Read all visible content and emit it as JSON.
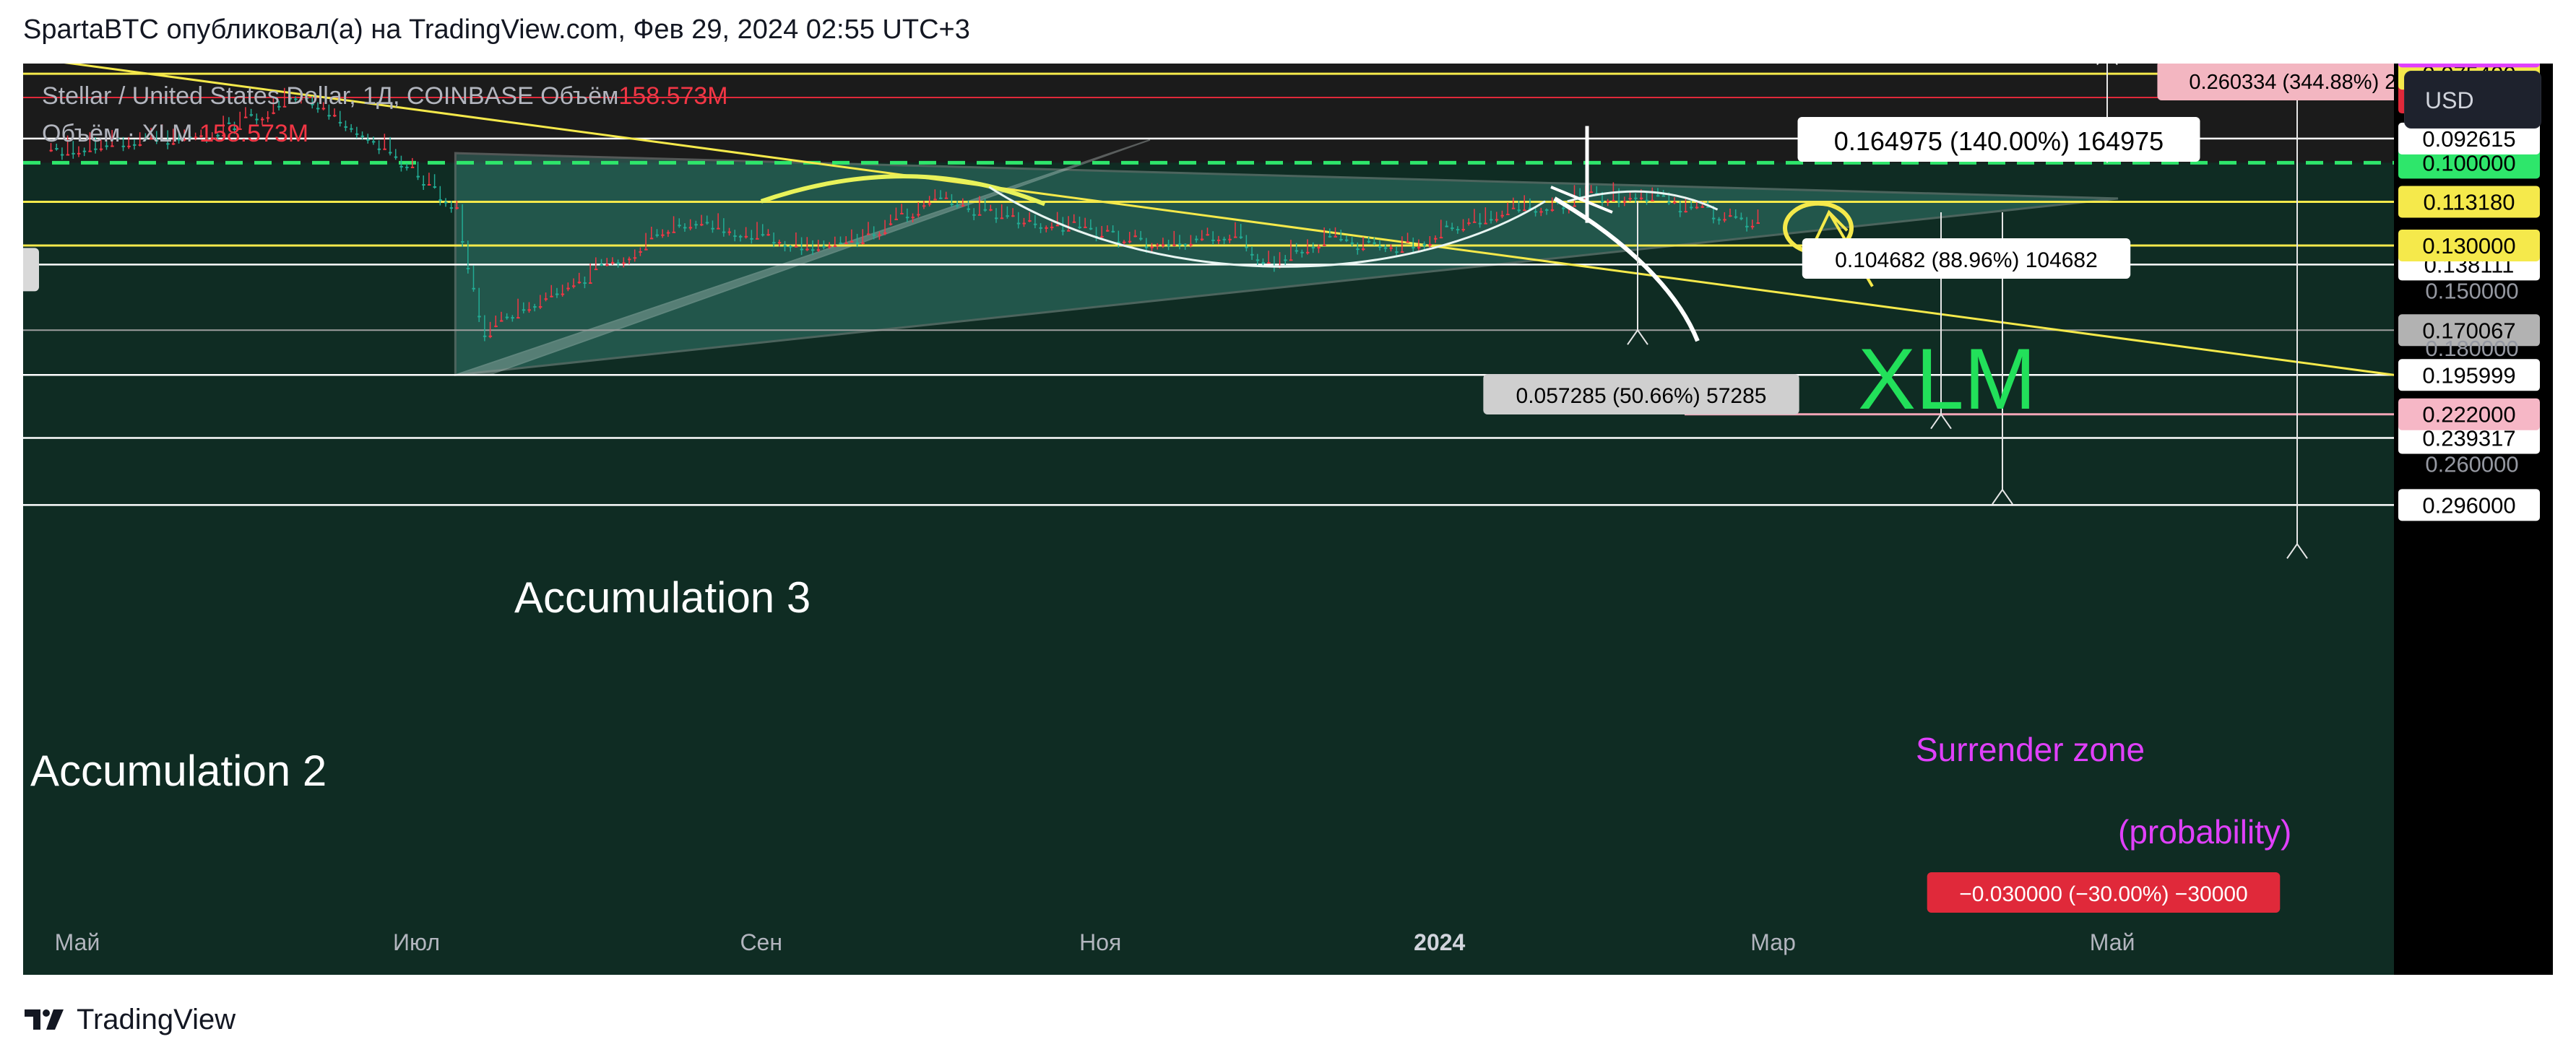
{
  "header": {
    "text": "SpartaBTC опубликовал(а) на TradingView.com, Фев 29, 2024 02:55 UTC+3"
  },
  "footer": {
    "brand": "TradingView"
  },
  "legend": {
    "line1_prefix": "Stellar / United States Dollar, 1Д, COINBASE  Объём",
    "line1_value": "158.573M",
    "line2_prefix": "Объём · XLM ",
    "line2_value": "158.573M"
  },
  "price_scale": {
    "currency_button": "USD"
  },
  "colors": {
    "chart_bg": "#1b1b1b",
    "up_candle": "#22ab94",
    "down_candle": "#f23645",
    "trendline_yellow": "#f5e94b",
    "green_dashed": "#2ee66b",
    "magenta": "#e040fb",
    "pink": "#f3a6b8",
    "accumulation_fill": "#4fb8a8"
  },
  "chart_data": {
    "type": "line",
    "symbol": "Stellar / United States Dollar, 1Д, COINBASE",
    "x_axis": {
      "labels": [
        "Май",
        "Июл",
        "Сен",
        "Ноя",
        "2024",
        "Мар",
        "Май"
      ],
      "dates": [
        "2023-05-01",
        "2023-07-01",
        "2023-09-01",
        "2023-11-01",
        "2024-01-01",
        "2024-03-01",
        "2024-05-01"
      ]
    },
    "y_axis": {
      "ticks": [
        0.26,
        0.18,
        0.15
      ],
      "range": [
        0.066,
        0.32
      ]
    },
    "price_series": {
      "name": "XLM",
      "x": [
        "2023-04-26",
        "2023-05-10",
        "2023-05-25",
        "2023-06-10",
        "2023-06-18",
        "2023-06-25",
        "2023-07-02",
        "2023-07-08",
        "2023-07-13",
        "2023-07-20",
        "2023-08-01",
        "2023-08-15",
        "2023-08-20",
        "2023-09-01",
        "2023-09-15",
        "2023-10-01",
        "2023-10-15",
        "2023-10-25",
        "2023-11-10",
        "2023-11-25",
        "2023-12-01",
        "2023-12-10",
        "2023-12-25",
        "2024-01-05",
        "2024-01-15",
        "2024-01-25",
        "2024-02-05",
        "2024-02-15",
        "2024-02-27"
      ],
      "y": [
        0.096,
        0.093,
        0.091,
        0.08,
        0.088,
        0.095,
        0.105,
        0.115,
        0.17,
        0.158,
        0.142,
        0.123,
        0.12,
        0.126,
        0.131,
        0.112,
        0.118,
        0.122,
        0.128,
        0.125,
        0.137,
        0.127,
        0.13,
        0.121,
        0.116,
        0.112,
        0.11,
        0.115,
        0.121
      ]
    },
    "volume": {
      "current": "158.573M"
    },
    "horizontal_levels": [
      {
        "price": 0.296,
        "label": "0.296000",
        "style": "white"
      },
      {
        "price": 0.239317,
        "label": "0.239317",
        "style": "white"
      },
      {
        "price": 0.222,
        "label": "0.222000",
        "style": "pink"
      },
      {
        "price": 0.195999,
        "label": "0.195999",
        "style": "white"
      },
      {
        "price": 0.170067,
        "label": "0.170067",
        "style": "gray"
      },
      {
        "price": 0.138111,
        "label": "0.138111",
        "style": "white"
      },
      {
        "price": 0.13,
        "label": "0.130000",
        "style": "yellow"
      },
      {
        "price": 0.11318,
        "label": "0.113180",
        "style": "yellow"
      },
      {
        "price": 0.1,
        "label": "0.100000",
        "style": "green"
      },
      {
        "price": 0.092615,
        "label": "0.092615",
        "style": "white"
      },
      {
        "price": 0.08131,
        "label": "0.081310",
        "style": "red"
      },
      {
        "price": 0.0754,
        "label": "0.075400",
        "style": "yellow"
      },
      {
        "price": 0.07028,
        "label": "0.070280",
        "style": "magenta"
      }
    ],
    "measurements": [
      {
        "label": "0.057285 (50.66%) 57285",
        "from": 0.113,
        "to": 0.17
      },
      {
        "label": "0.104682 (88.96%) 104682",
        "from": 0.117,
        "to": 0.222
      },
      {
        "label": "0.164975 (140.00%) 164975",
        "from": 0.117,
        "to": 0.282
      },
      {
        "label": "0.260334 (344.88%) 26",
        "from": 0.075,
        "to": 0.335
      },
      {
        "label": "−0.030000 (−30.00%) −30000",
        "from": 0.1,
        "to": 0.07
      }
    ],
    "annotations": [
      "Accumulation 3",
      "Accumulation 2",
      "XLM",
      "Surrender zone",
      "(probability)"
    ]
  }
}
